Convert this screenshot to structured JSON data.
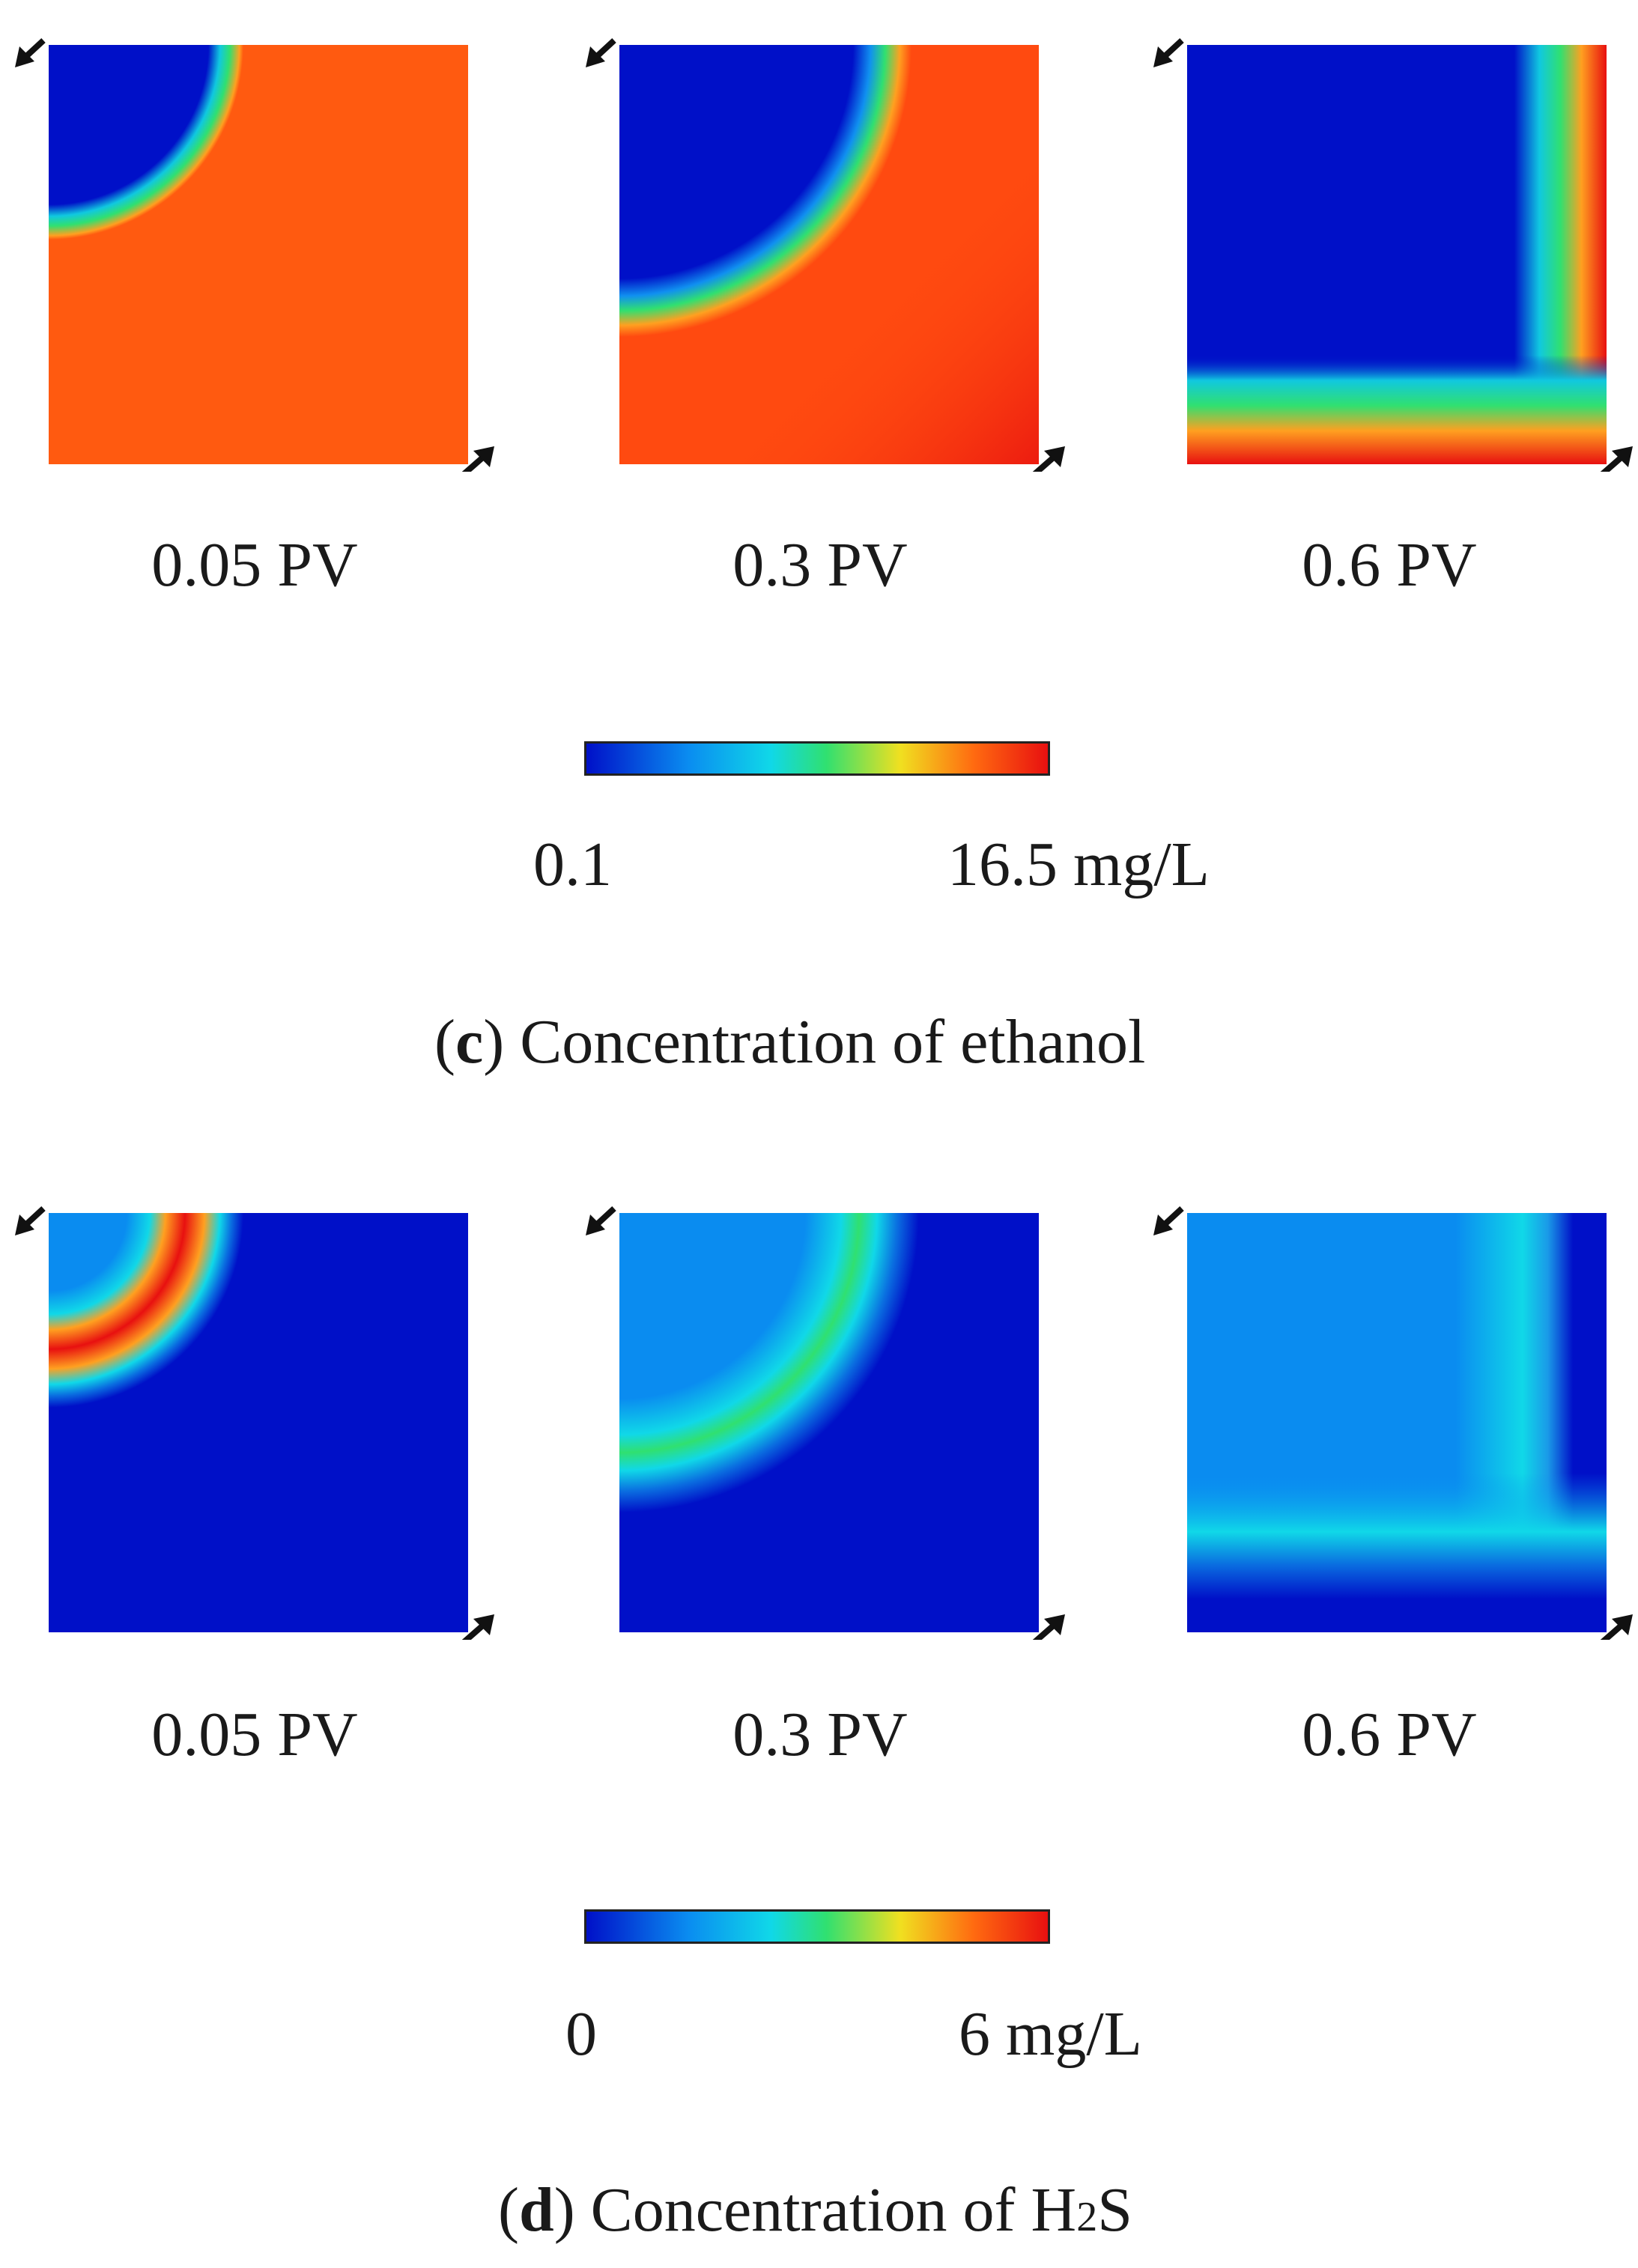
{
  "section_c": {
    "panels": [
      {
        "label": "0.05 PV",
        "front_fraction": 0.23
      },
      {
        "label": "0.3 PV",
        "front_fraction": 0.58
      },
      {
        "label": "0.6 PV",
        "front_fraction": 0.85
      }
    ],
    "colorbar": {
      "min_label": "0.1",
      "max_label": "16.5 mg/L"
    },
    "caption": {
      "open": "(",
      "letter": "c",
      "rest": ") Concentration of ethanol"
    }
  },
  "section_d": {
    "panels": [
      {
        "label": "0.05 PV",
        "front_fraction": 0.23
      },
      {
        "label": "0.3 PV",
        "front_fraction": 0.58
      },
      {
        "label": "0.6 PV",
        "front_fraction": 0.85
      }
    ],
    "colorbar": {
      "min_label": "0",
      "max_label": "6 mg/L"
    },
    "caption": {
      "open": "(",
      "letter": "d",
      "rest": ") Concentration of H",
      "sub": "2",
      "tail": "S"
    }
  },
  "colors": {
    "deep_blue": "#0010c8",
    "light_blue": "#0a8cf0",
    "cyan": "#10d8e8",
    "green": "#30e070",
    "yellow": "#f0e020",
    "orange": "#ff6a10",
    "red": "#e81010",
    "arrow": "#111111"
  },
  "icons": {
    "inflow": "inflow-arrow-icon",
    "outflow": "outflow-arrow-icon"
  }
}
